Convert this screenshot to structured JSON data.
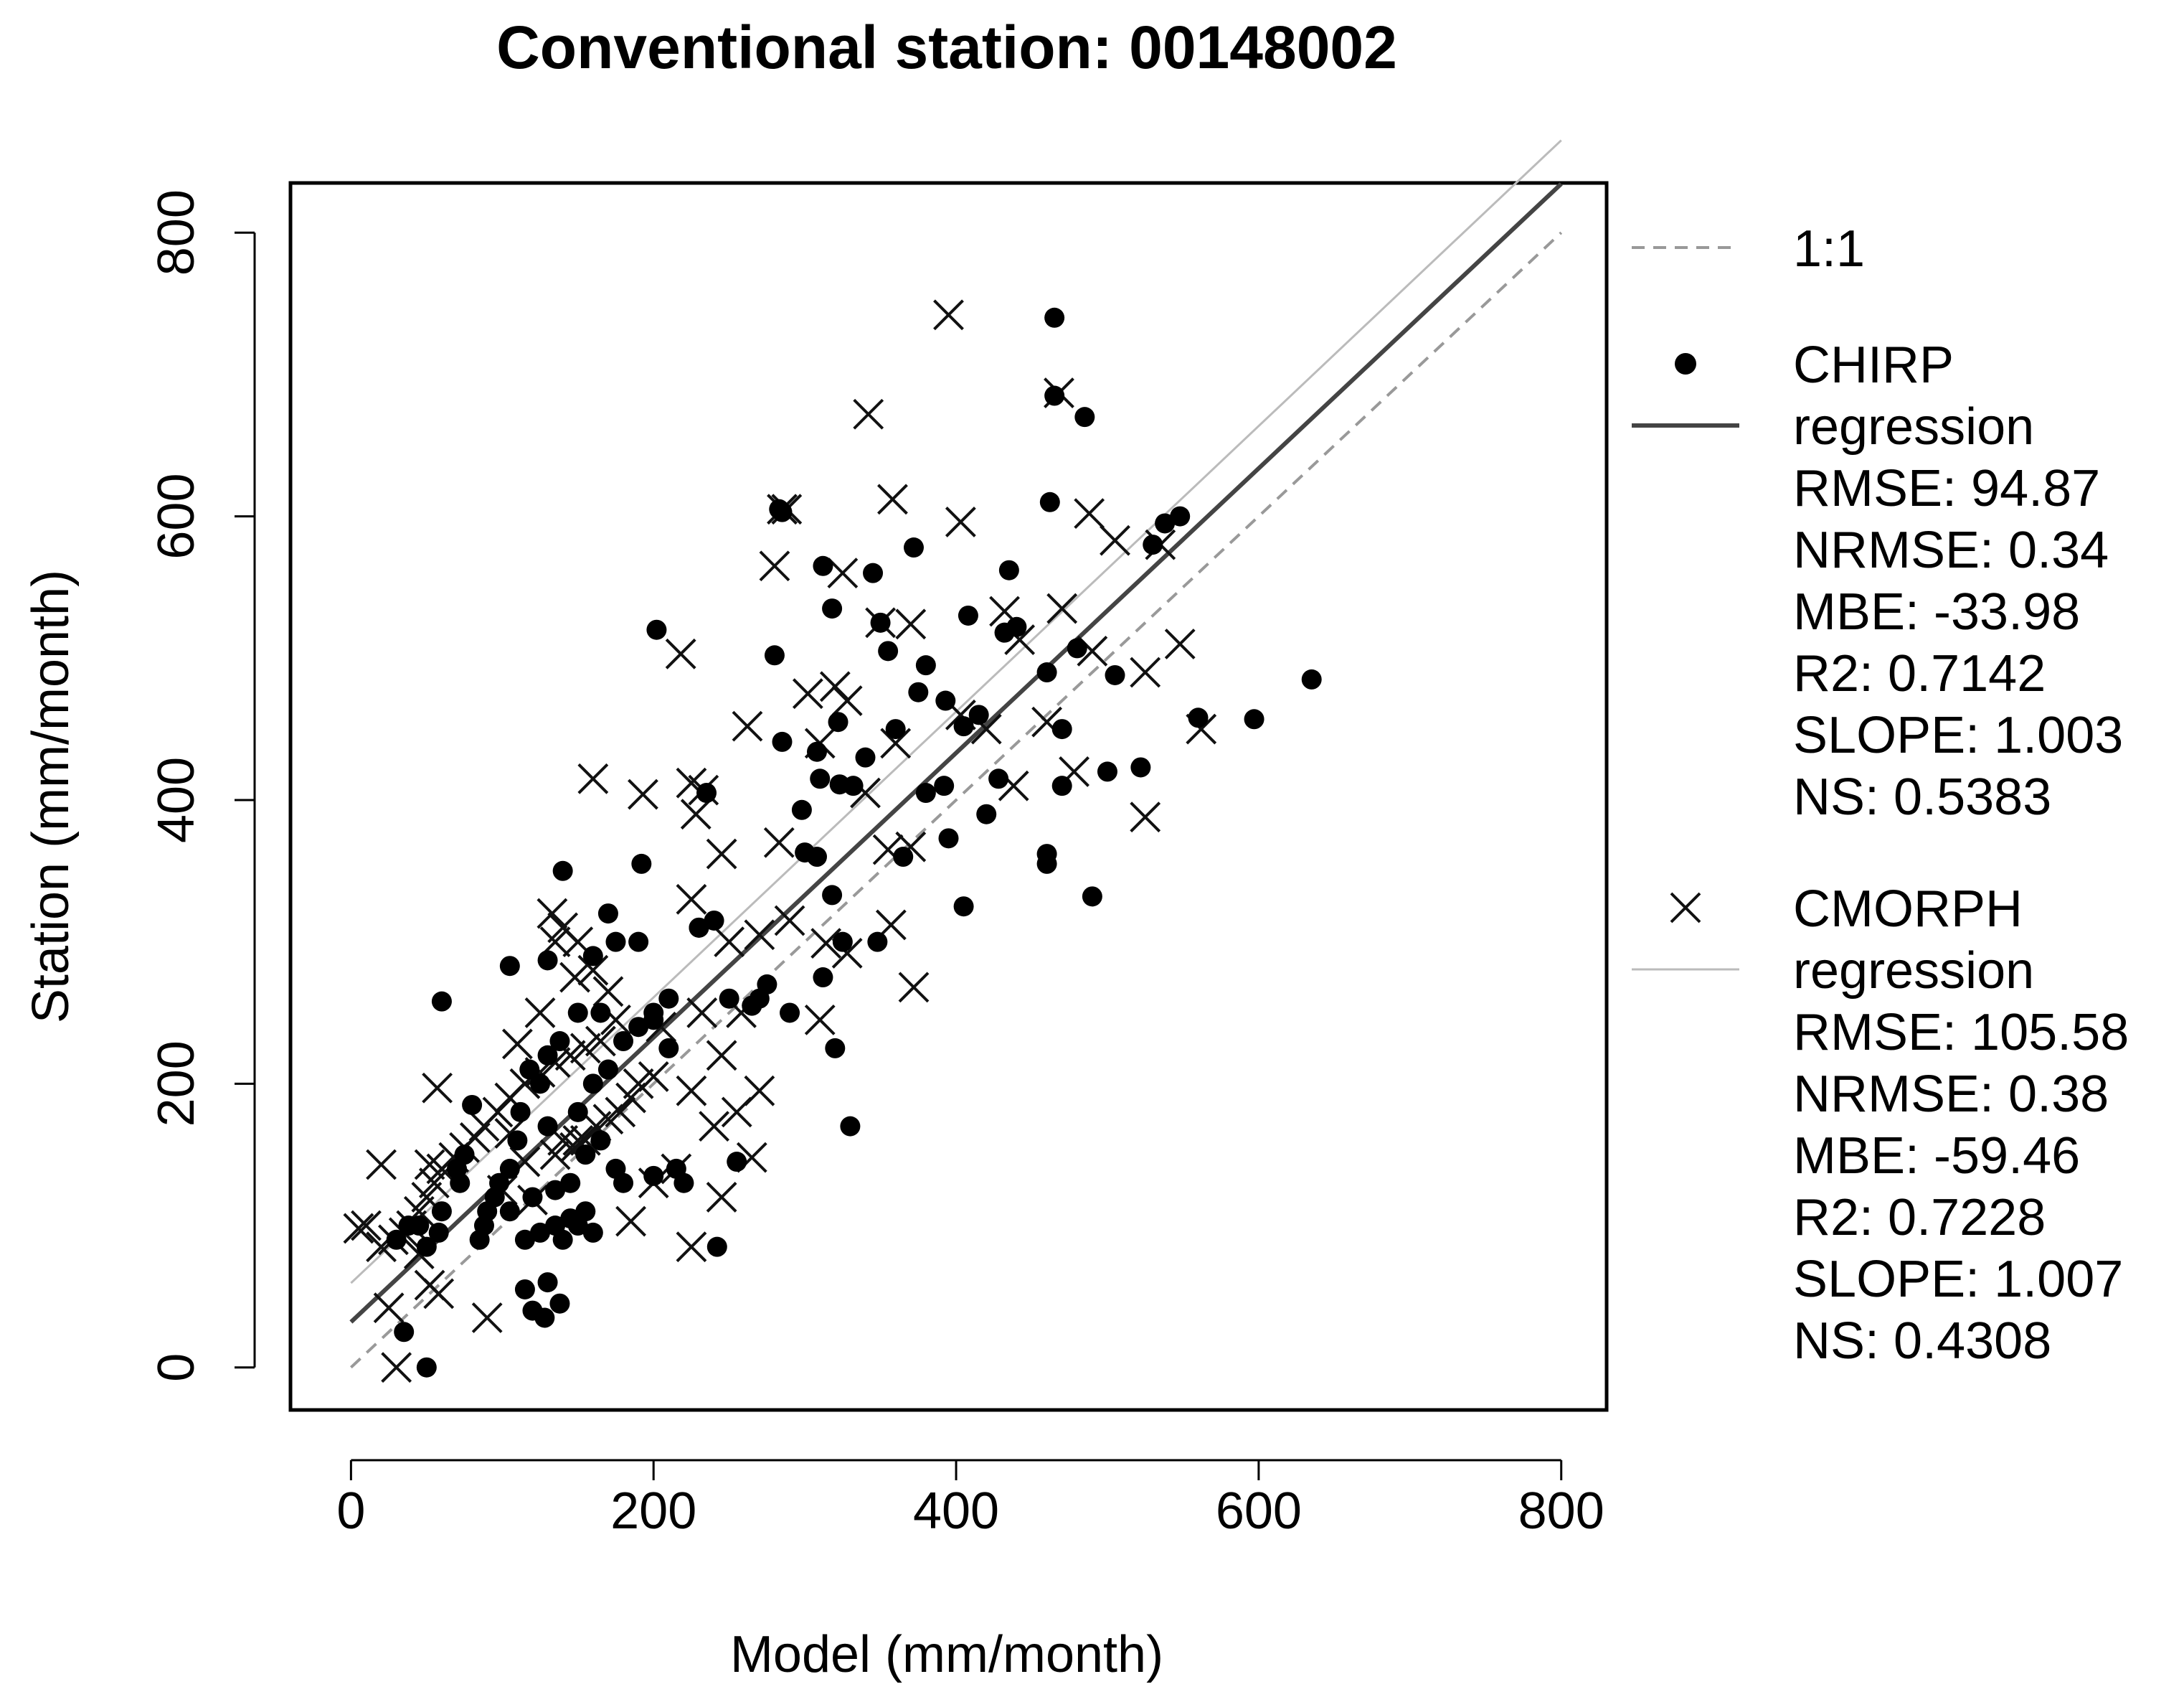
{
  "chart_data": {
    "type": "scatter",
    "title": "Conventional station: 00148002",
    "xlabel": "Model (mm/month)",
    "ylabel": "Station (mm/month)",
    "xlim": [
      -40,
      830
    ],
    "ylim": [
      -30,
      835
    ],
    "xticks": [
      "0",
      "200",
      "400",
      "600",
      "800"
    ],
    "yticks": [
      "0",
      "200",
      "400",
      "600",
      "800"
    ],
    "grid": false,
    "legend_position": "right",
    "one_to_one": {
      "label": "1:1",
      "color": "#999999",
      "style": "dashed"
    },
    "series": [
      {
        "name": "CHIRP",
        "marker": "filled-circle",
        "regression": {
          "label": "regression",
          "color": "#444444",
          "intercept": 32,
          "slope": 1.003
        },
        "stats": [
          "RMSE: 94.87",
          "NRMSE: 0.34",
          "MBE: -33.98",
          "R2: 0.7142",
          "SLOPE: 1.003",
          "NS: 0.5383"
        ],
        "points": [
          [
            465,
            740
          ],
          [
            465,
            685
          ],
          [
            485,
            670
          ],
          [
            462,
            610
          ],
          [
            548,
            600
          ],
          [
            538,
            595
          ],
          [
            530,
            580
          ],
          [
            283,
            605
          ],
          [
            285,
            603
          ],
          [
            312,
            565
          ],
          [
            345,
            560
          ],
          [
            435,
            562
          ],
          [
            372,
            578
          ],
          [
            318,
            535
          ],
          [
            408,
            530
          ],
          [
            432,
            518
          ],
          [
            440,
            522
          ],
          [
            350,
            525
          ],
          [
            202,
            520
          ],
          [
            280,
            502
          ],
          [
            355,
            505
          ],
          [
            480,
            507
          ],
          [
            460,
            490
          ],
          [
            505,
            488
          ],
          [
            380,
            495
          ],
          [
            393,
            470
          ],
          [
            415,
            460
          ],
          [
            405,
            452
          ],
          [
            470,
            450
          ],
          [
            360,
            450
          ],
          [
            375,
            476
          ],
          [
            322,
            455
          ],
          [
            285,
            441
          ],
          [
            308,
            434
          ],
          [
            340,
            430
          ],
          [
            298,
            393
          ],
          [
            310,
            415
          ],
          [
            323,
            411
          ],
          [
            332,
            410
          ],
          [
            392,
            410
          ],
          [
            380,
            405
          ],
          [
            420,
            390
          ],
          [
            428,
            415
          ],
          [
            470,
            410
          ],
          [
            500,
            420
          ],
          [
            522,
            423
          ],
          [
            560,
            458
          ],
          [
            597,
            457
          ],
          [
            635,
            485
          ],
          [
            460,
            362
          ],
          [
            490,
            332
          ],
          [
            405,
            325
          ],
          [
            348,
            300
          ],
          [
            325,
            300
          ],
          [
            312,
            275
          ],
          [
            320,
            225
          ],
          [
            290,
            250
          ],
          [
            230,
            310
          ],
          [
            240,
            315
          ],
          [
            308,
            360
          ],
          [
            318,
            333
          ],
          [
            300,
            363
          ],
          [
            395,
            373
          ],
          [
            460,
            355
          ],
          [
            365,
            360
          ],
          [
            235,
            405
          ],
          [
            192,
            355
          ],
          [
            200,
            245
          ],
          [
            210,
            225
          ],
          [
            215,
            140
          ],
          [
            200,
            135
          ],
          [
            220,
            130
          ],
          [
            230,
            310
          ],
          [
            242,
            85
          ],
          [
            170,
            320
          ],
          [
            175,
            300
          ],
          [
            190,
            300
          ],
          [
            140,
            350
          ],
          [
            160,
            290
          ],
          [
            165,
            250
          ],
          [
            150,
            250
          ],
          [
            138,
            230
          ],
          [
            130,
            220
          ],
          [
            125,
            200
          ],
          [
            118,
            210
          ],
          [
            112,
            180
          ],
          [
            110,
            160
          ],
          [
            105,
            140
          ],
          [
            98,
            130
          ],
          [
            95,
            120
          ],
          [
            90,
            110
          ],
          [
            88,
            100
          ],
          [
            85,
            90
          ],
          [
            105,
            110
          ],
          [
            120,
            120
          ],
          [
            135,
            125
          ],
          [
            145,
            130
          ],
          [
            155,
            150
          ],
          [
            165,
            160
          ],
          [
            175,
            140
          ],
          [
            180,
            130
          ],
          [
            150,
            100
          ],
          [
            160,
            95
          ],
          [
            140,
            90
          ],
          [
            130,
            60
          ],
          [
            138,
            45
          ],
          [
            120,
            40
          ],
          [
            128,
            35
          ],
          [
            115,
            55
          ],
          [
            60,
            258
          ],
          [
            105,
            283
          ],
          [
            130,
            287
          ],
          [
            80,
            185
          ],
          [
            75,
            150
          ],
          [
            70,
            140
          ],
          [
            72,
            130
          ],
          [
            60,
            110
          ],
          [
            58,
            95
          ],
          [
            50,
            85
          ],
          [
            45,
            100
          ],
          [
            38,
            100
          ],
          [
            30,
            90
          ],
          [
            35,
            25
          ],
          [
            50,
            0
          ],
          [
            130,
            170
          ],
          [
            150,
            180
          ],
          [
            160,
            200
          ],
          [
            170,
            210
          ],
          [
            180,
            230
          ],
          [
            190,
            240
          ],
          [
            200,
            250
          ],
          [
            210,
            260
          ],
          [
            155,
            110
          ],
          [
            145,
            105
          ],
          [
            135,
            100
          ],
          [
            125,
            95
          ],
          [
            115,
            90
          ],
          [
            270,
            260
          ],
          [
            265,
            255
          ],
          [
            255,
            145
          ],
          [
            250,
            260
          ],
          [
            330,
            170
          ],
          [
            275,
            270
          ],
          [
            265,
            255
          ]
        ]
      },
      {
        "name": "CMORPH",
        "marker": "cross",
        "regression": {
          "label": "regression",
          "color": "#bbbbbb",
          "intercept": 59.46,
          "slope": 1.007
        },
        "stats": [
          "RMSE: 105.58",
          "NRMSE: 0.38",
          "MBE: -59.46",
          "R2: 0.7228",
          "SLOPE: 1.007",
          "NS: 0.4308"
        ],
        "points": [
          [
            395,
            742
          ],
          [
            342,
            672
          ],
          [
            468,
            687
          ],
          [
            358,
            612
          ],
          [
            288,
            605
          ],
          [
            285,
            605
          ],
          [
            403,
            596
          ],
          [
            488,
            602
          ],
          [
            505,
            583
          ],
          [
            535,
            580
          ],
          [
            280,
            565
          ],
          [
            325,
            560
          ],
          [
            350,
            525
          ],
          [
            370,
            524
          ],
          [
            432,
            533
          ],
          [
            442,
            513
          ],
          [
            470,
            535
          ],
          [
            490,
            505
          ],
          [
            548,
            510
          ],
          [
            525,
            490
          ],
          [
            562,
            450
          ],
          [
            218,
            503
          ],
          [
            262,
            452
          ],
          [
            302,
            475
          ],
          [
            320,
            480
          ],
          [
            328,
            470
          ],
          [
            310,
            440
          ],
          [
            360,
            440
          ],
          [
            403,
            460
          ],
          [
            420,
            450
          ],
          [
            460,
            455
          ],
          [
            438,
            410
          ],
          [
            478,
            420
          ],
          [
            525,
            388
          ],
          [
            160,
            415
          ],
          [
            193,
            404
          ],
          [
            225,
            412
          ],
          [
            233,
            407
          ],
          [
            228,
            390
          ],
          [
            245,
            362
          ],
          [
            283,
            370
          ],
          [
            340,
            405
          ],
          [
            355,
            365
          ],
          [
            370,
            367
          ],
          [
            357,
            312
          ],
          [
            372,
            268
          ],
          [
            328,
            292
          ],
          [
            314,
            299
          ],
          [
            290,
            315
          ],
          [
            270,
            305
          ],
          [
            258,
            250
          ],
          [
            310,
            245
          ],
          [
            225,
            330
          ],
          [
            250,
            300
          ],
          [
            232,
            250
          ],
          [
            245,
            220
          ],
          [
            225,
            195
          ],
          [
            205,
            240
          ],
          [
            200,
            205
          ],
          [
            190,
            200
          ],
          [
            185,
            190
          ],
          [
            178,
            180
          ],
          [
            170,
            175
          ],
          [
            162,
            170
          ],
          [
            155,
            160
          ],
          [
            148,
            155
          ],
          [
            140,
            160
          ],
          [
            135,
            300
          ],
          [
            140,
            310
          ],
          [
            150,
            300
          ],
          [
            160,
            280
          ],
          [
            170,
            265
          ],
          [
            175,
            245
          ],
          [
            165,
            230
          ],
          [
            155,
            225
          ],
          [
            145,
            220
          ],
          [
            135,
            215
          ],
          [
            125,
            208
          ],
          [
            115,
            200
          ],
          [
            105,
            190
          ],
          [
            97,
            180
          ],
          [
            88,
            170
          ],
          [
            82,
            162
          ],
          [
            75,
            155
          ],
          [
            68,
            148
          ],
          [
            60,
            140
          ],
          [
            55,
            130
          ],
          [
            50,
            120
          ],
          [
            45,
            110
          ],
          [
            40,
            100
          ],
          [
            35,
            95
          ],
          [
            28,
            90
          ],
          [
            20,
            85
          ],
          [
            10,
            100
          ],
          [
            5,
            98
          ],
          [
            20,
            143
          ],
          [
            52,
            143
          ],
          [
            57,
            197
          ],
          [
            133,
            320
          ],
          [
            148,
            275
          ],
          [
            125,
            250
          ],
          [
            110,
            228
          ],
          [
            120,
            118
          ],
          [
            135,
            150
          ],
          [
            150,
            160
          ],
          [
            100,
            125
          ],
          [
            105,
            165
          ],
          [
            115,
            145
          ],
          [
            90,
            35
          ],
          [
            45,
            80
          ],
          [
            52,
            58
          ],
          [
            58,
            52
          ],
          [
            30,
            0
          ],
          [
            25,
            42
          ],
          [
            185,
            103
          ],
          [
            225,
            85
          ],
          [
            245,
            120
          ],
          [
            265,
            148
          ],
          [
            200,
            130
          ],
          [
            215,
            140
          ],
          [
            240,
            170
          ],
          [
            255,
            180
          ],
          [
            270,
            195
          ]
        ]
      }
    ]
  }
}
